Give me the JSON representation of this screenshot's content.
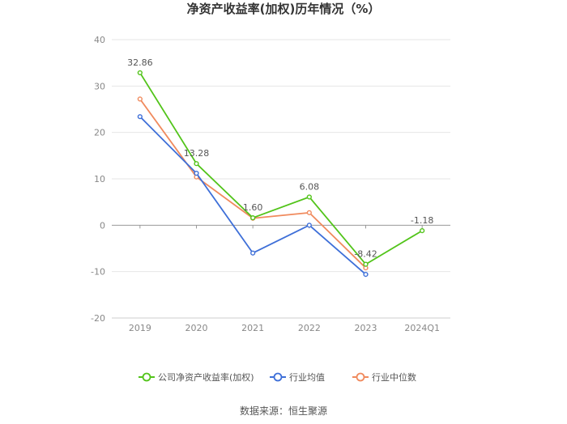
{
  "chart_data": {
    "type": "line",
    "title": "净资产收益率(加权)历年情况（%）",
    "xlabel": "",
    "ylabel": "",
    "categories": [
      "2019",
      "2020",
      "2021",
      "2022",
      "2023",
      "2024Q1"
    ],
    "ylim": [
      -20,
      40
    ],
    "yticks": [
      40,
      30,
      20,
      10,
      0,
      -10,
      -20
    ],
    "grid": true,
    "legend_position": "bottom-center",
    "series": [
      {
        "name": "公司净资产收益率(加权)",
        "color": "#52c41a",
        "values": [
          32.86,
          13.28,
          1.6,
          6.08,
          -8.42,
          -1.18
        ],
        "labels": [
          "32.86",
          "13.28",
          "1.60",
          "6.08",
          "-8.42",
          "-1.18"
        ]
      },
      {
        "name": "行业均值",
        "color": "#3e6fd8",
        "values": [
          23.4,
          11.2,
          -6.0,
          0.0,
          -10.6,
          null
        ]
      },
      {
        "name": "行业中位数",
        "color": "#f08a5d",
        "values": [
          27.2,
          10.4,
          1.5,
          2.7,
          -9.2,
          null
        ]
      }
    ]
  },
  "source": "数据来源：恒生聚源"
}
